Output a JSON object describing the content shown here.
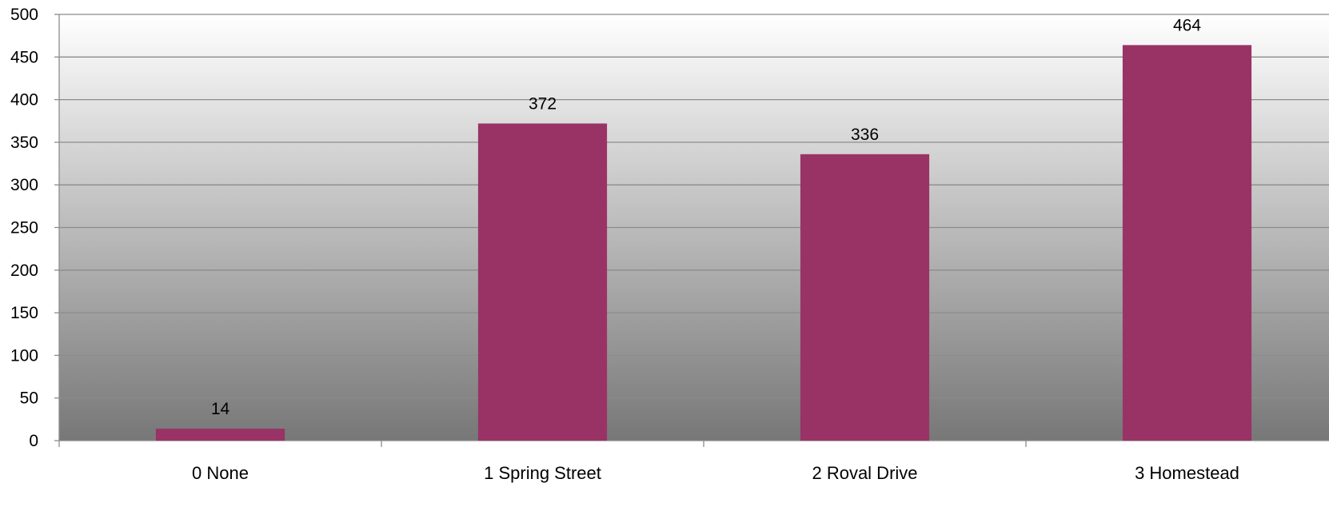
{
  "chart_data": {
    "type": "bar",
    "title": "",
    "xlabel": "",
    "ylabel": "",
    "categories": [
      "0 None",
      "1 Spring Street",
      "2 Roval Drive",
      "3 Homestead"
    ],
    "values": [
      14,
      372,
      336,
      464
    ],
    "data_labels": [
      "14",
      "372",
      "336",
      "464"
    ],
    "ylim": [
      0,
      500
    ],
    "yticks": [
      0,
      50,
      100,
      150,
      200,
      250,
      300,
      350,
      400,
      450,
      500
    ],
    "ytick_labels": [
      "0",
      "50",
      "100",
      "150",
      "200",
      "250",
      "300",
      "350",
      "400",
      "450",
      "500"
    ],
    "grid": true,
    "legend": "none",
    "bar_color": "#993366",
    "background_gradient": [
      "#ffffff",
      "#777777"
    ],
    "gridline_color": "#8c8c8c"
  }
}
